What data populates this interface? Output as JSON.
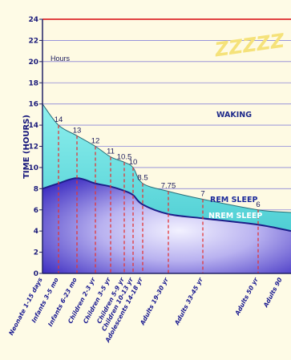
{
  "chart_data": {
    "type": "area",
    "ylabel": "TIME (HOURS)",
    "units_label": "Hours",
    "ylim": [
      0,
      24
    ],
    "yticks": [
      0,
      2,
      4,
      6,
      8,
      10,
      12,
      14,
      16,
      18,
      20,
      22,
      24
    ],
    "grid": true,
    "regions": {
      "waking": "WAKING",
      "rem": "REM SLEEP",
      "nrem": "NREM SLEEP"
    },
    "decor": "ZZZZZ",
    "categories": [
      "Neonate 1-15 days",
      "Infants 3-5 mo",
      "Infants 6-23 mo",
      "Children 2-3 yr",
      "Children 3-5 yr",
      "Children 5-9 yr",
      "Children 10-13 yr",
      "Adolescents 14-18 yr",
      "Adults 19-30 yr",
      "Adults 33-45 yr",
      "Adults 50 yr",
      "Adults 90"
    ],
    "total_sleep_labels": [
      "14",
      "13",
      "12",
      "11",
      "10.5",
      "10",
      "8.5",
      "7.75",
      "7",
      "6"
    ],
    "total_sleep_label_categories": [
      1,
      2,
      3,
      4,
      5,
      6,
      7,
      8,
      9,
      10
    ],
    "series": [
      {
        "name": "total sleep",
        "values": [
          16,
          14,
          13,
          12,
          11,
          10.5,
          10,
          8.5,
          7.75,
          7,
          6,
          5.75
        ]
      },
      {
        "name": "NREM sleep",
        "values": [
          8,
          8.5,
          9,
          8.5,
          8.2,
          7.8,
          7.4,
          6.5,
          5.6,
          5.2,
          4.6,
          4.0
        ]
      }
    ],
    "colors": {
      "waking_bg": "#fef9e2",
      "rem_fill": "#69dcdc",
      "nrem_fill": "#4b3bcc",
      "axis": "#222266",
      "border": "#e14242",
      "dashes": "#e33535",
      "nrem_line": "#1d1f8a",
      "zzz": "#f5e27a"
    }
  }
}
